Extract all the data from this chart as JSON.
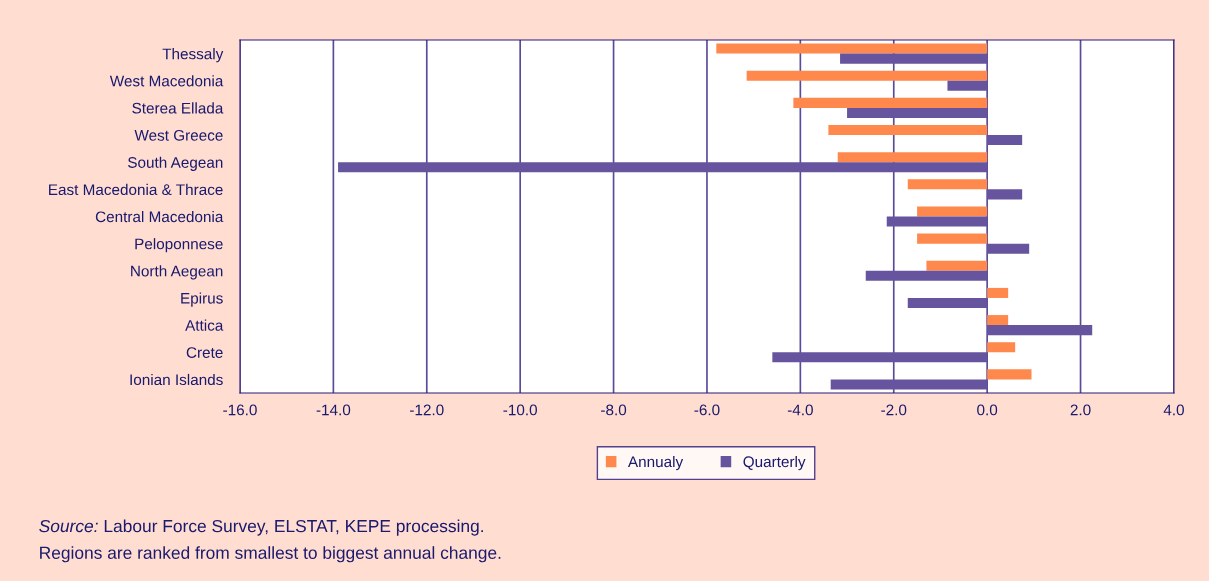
{
  "chart_data": {
    "type": "bar",
    "orientation": "horizontal",
    "categories": [
      "Thessaly",
      "West Macedonia",
      "Sterea Ellada",
      "West Greece",
      "South Aegean",
      "East Macedonia & Thrace",
      "Central Macedonia",
      "Peloponnese",
      "North Aegean",
      "Epirus",
      "Attica",
      "Crete",
      "Ionian Islands"
    ],
    "series": [
      {
        "name": "Annualy",
        "color": "#ff884d",
        "values": [
          -5.8,
          -5.15,
          -4.15,
          -3.4,
          -3.2,
          -1.7,
          -1.5,
          -1.5,
          -1.3,
          0.45,
          0.45,
          0.6,
          0.95
        ]
      },
      {
        "name": "Quarterly",
        "color": "#66559e",
        "values": [
          -3.15,
          -0.85,
          -3.0,
          0.75,
          -13.9,
          0.75,
          -2.15,
          0.9,
          -2.6,
          -1.7,
          2.25,
          -4.6,
          -3.35
        ]
      }
    ],
    "xlim": [
      -16,
      4
    ],
    "xticks": [
      {
        "value": -16,
        "label": "-16.0"
      },
      {
        "value": -14,
        "label": "-14.0"
      },
      {
        "value": -12,
        "label": "-12.0"
      },
      {
        "value": -10,
        "label": "-10.0"
      },
      {
        "value": -8,
        "label": "-8.0"
      },
      {
        "value": -6,
        "label": "-6.0"
      },
      {
        "value": -4,
        "label": "-4.0"
      },
      {
        "value": -2,
        "label": "-2.0"
      },
      {
        "value": 0,
        "label": "0.0"
      },
      {
        "value": 2,
        "label": "2.0"
      },
      {
        "value": 4,
        "label": "4.0"
      }
    ],
    "grid": "x",
    "legend": "bottom",
    "annotations": [
      "Source: Labour Force Survey, ELSTAT, KEPE processing.",
      "Regions are ranked from smallest to biggest annual change."
    ]
  }
}
